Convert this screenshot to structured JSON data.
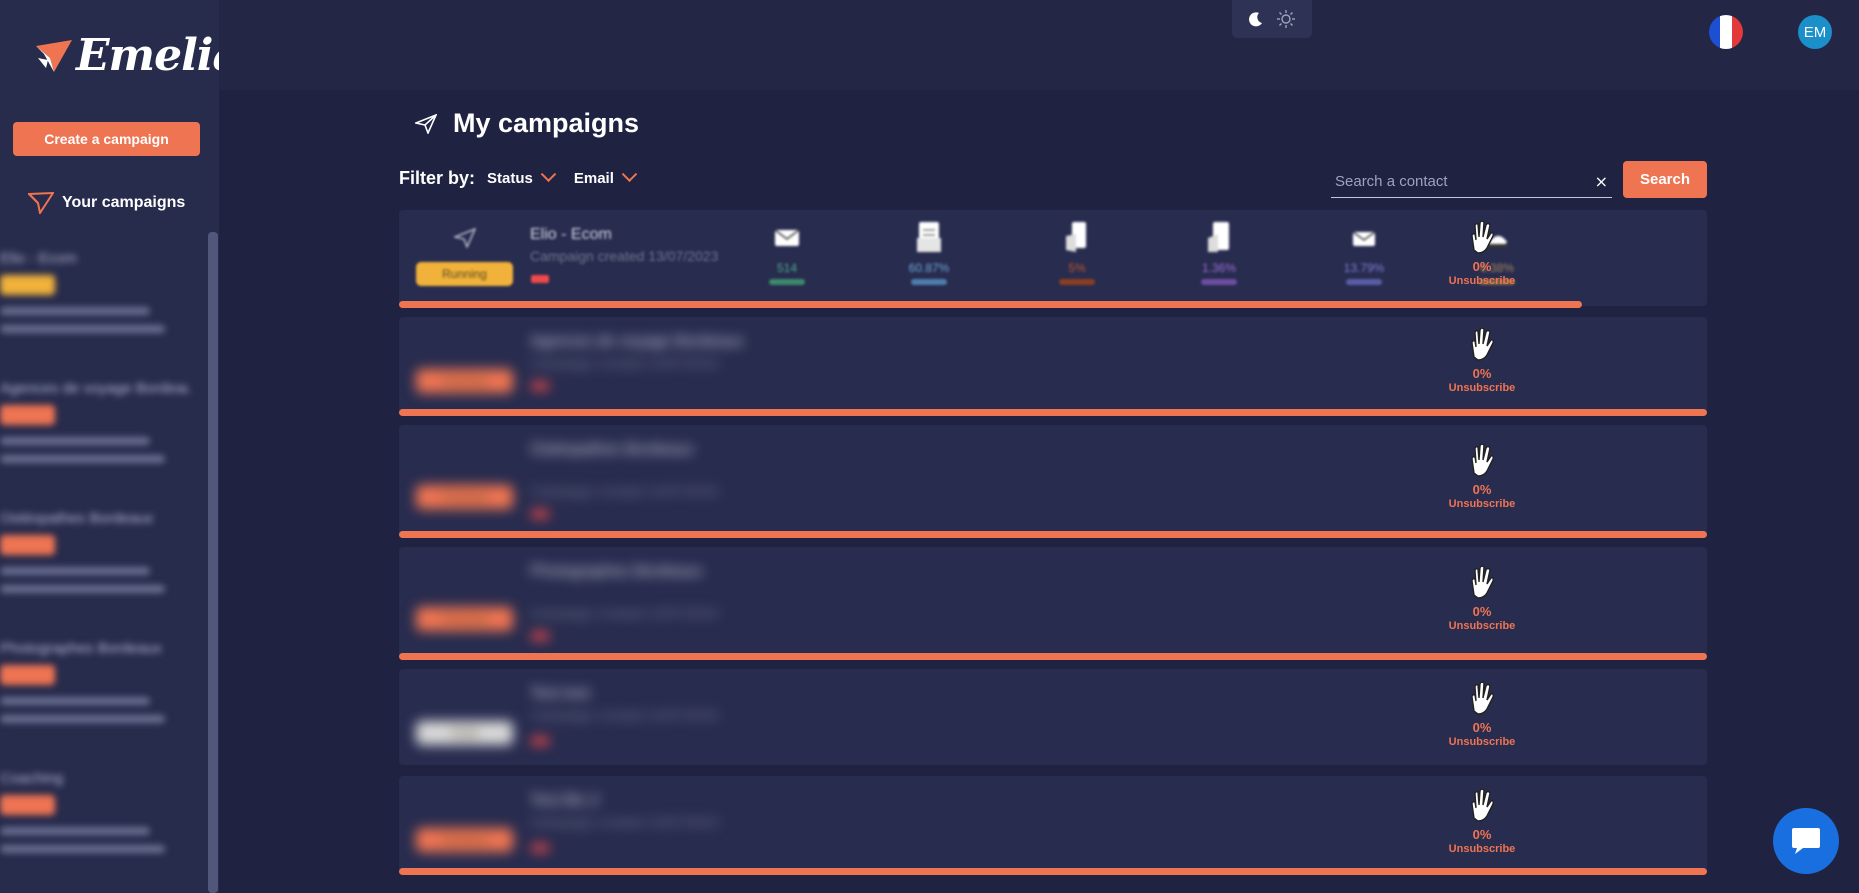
{
  "brand": {
    "logo_text": "Emelia"
  },
  "sidebar": {
    "create_button": "Create a campaign",
    "section_title": "Your campaigns",
    "items": [
      {
        "title": "Elio - Ecom",
        "badge": "yellow"
      },
      {
        "title": "Agences de voyage Bordeaux",
        "badge": "orange"
      },
      {
        "title": "Ostéopathes Bordeaux",
        "badge": "orange"
      },
      {
        "title": "Photographes Bordeaux",
        "badge": "orange"
      },
      {
        "title": "Coaching",
        "badge": "orange"
      }
    ]
  },
  "topbar": {
    "theme_icons": [
      "moon-icon",
      "sun-icon"
    ],
    "language_flag": "fr-flag",
    "avatar_initials": "EM"
  },
  "header": {
    "title": "My campaigns",
    "filter_label": "Filter by:",
    "filter_status": "Status",
    "filter_email": "Email",
    "search_placeholder": "Search a contact",
    "search_clear": "×",
    "search_button": "Search"
  },
  "colors": {
    "accent": "#ee7452",
    "background": "#1f2240",
    "sidebar": "#272b4c",
    "row": "#282c4f",
    "running": "#f0b23a"
  },
  "campaigns": [
    {
      "title": "Elio - Ecom",
      "subtitle": "Campaign created 13/07/2023",
      "status": "Running",
      "progress": 0.905,
      "stats": [
        {
          "icon": "envelope-icon",
          "value": "514",
          "color": "#4cae8a"
        },
        {
          "icon": "opened-mail-icon",
          "value": "60.87%",
          "color": "#6fa6d8"
        },
        {
          "icon": "clicked-icon",
          "value": "5%",
          "color": "#c0572e"
        },
        {
          "icon": "replied-icon",
          "value": "1.36%",
          "color": "#9c6fd6"
        },
        {
          "icon": "bounce-icon",
          "value": "13.79%",
          "color": "#7b7fd0"
        },
        {
          "icon": "interested-icon",
          "value": "6.38%",
          "color": "#a38660"
        }
      ],
      "unsubscribe_value": "0%",
      "unsubscribe_label": "Unsubscribe"
    },
    {
      "title": "Agences de voyage Bordeaux",
      "subtitle": "Campaign created 13/07/2023",
      "status": "Finished",
      "progress": 1,
      "unsubscribe_value": "0%",
      "unsubscribe_label": "Unsubscribe"
    },
    {
      "title": "Ostéopathes Bordeaux",
      "subtitle": "Campaign created 13/07/2023",
      "status": "Finished",
      "progress": 1,
      "unsubscribe_value": "0%",
      "unsubscribe_label": "Unsubscribe"
    },
    {
      "title": "Photographes Bordeaux",
      "subtitle": "Campaign created 13/07/2023",
      "status": "Finished",
      "progress": 1,
      "unsubscribe_value": "0%",
      "unsubscribe_label": "Unsubscribe"
    },
    {
      "title": "Test test",
      "subtitle": "Campaign created 13/07/2023",
      "status": "Draft",
      "progress": 0,
      "unsubscribe_value": "0%",
      "unsubscribe_label": "Unsubscribe"
    },
    {
      "title": "Test Bis 2",
      "subtitle": "Campaign created 13/07/2023",
      "status": "Finished",
      "progress": 1,
      "unsubscribe_value": "0%",
      "unsubscribe_label": "Unsubscribe"
    }
  ],
  "chat": {
    "icon": "chat-bubble-icon"
  }
}
